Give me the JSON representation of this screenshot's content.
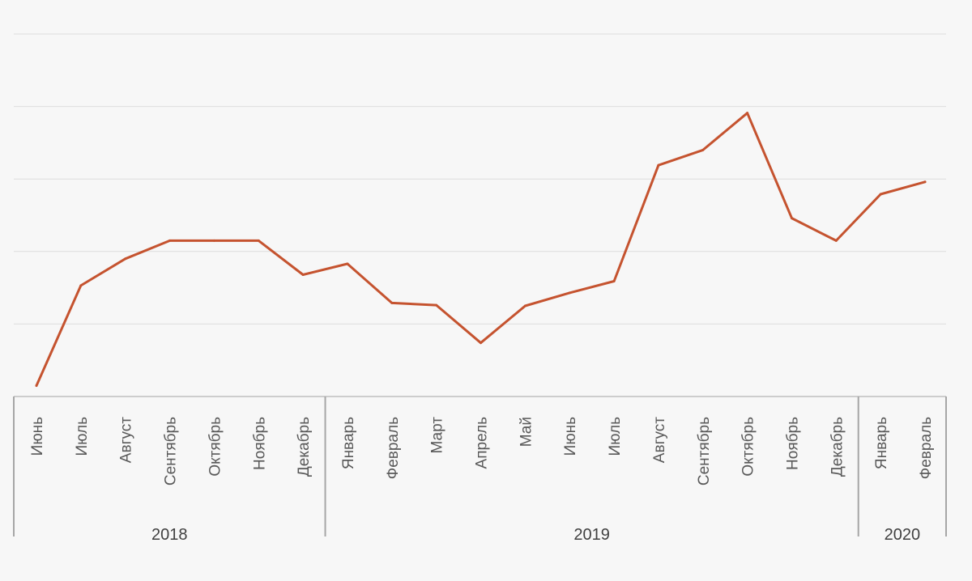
{
  "chart_data": {
    "type": "line",
    "title": "",
    "xlabel": "",
    "ylabel": "",
    "categories": [
      "Июнь",
      "Июль",
      "Август",
      "Сентябрь",
      "Октябрь",
      "Ноябрь",
      "Декабрь",
      "Январь",
      "Февраль",
      "Март",
      "Апрель",
      "Май",
      "Июнь",
      "Июль",
      "Август",
      "Сентябрь",
      "Октябрь",
      "Ноябрь",
      "Декабрь",
      "Январь",
      "Февраль"
    ],
    "years": [
      {
        "label": "2018",
        "start": 0,
        "end": 6
      },
      {
        "label": "2019",
        "start": 7,
        "end": 18
      },
      {
        "label": "2020",
        "start": 19,
        "end": 20
      }
    ],
    "series": [
      {
        "values": [
          0.15,
          1.53,
          1.9,
          2.15,
          2.15,
          2.15,
          1.68,
          1.83,
          1.29,
          1.26,
          0.74,
          1.25,
          1.43,
          1.59,
          3.19,
          3.4,
          3.91,
          2.46,
          2.15,
          2.79,
          2.96
        ],
        "color": "#c5532f"
      }
    ],
    "ylim": [
      0,
      5
    ],
    "y_gridlines": [
      1,
      2,
      3,
      4,
      5
    ],
    "y_tick_labels_shown": false,
    "grid": true,
    "legend": "none"
  }
}
